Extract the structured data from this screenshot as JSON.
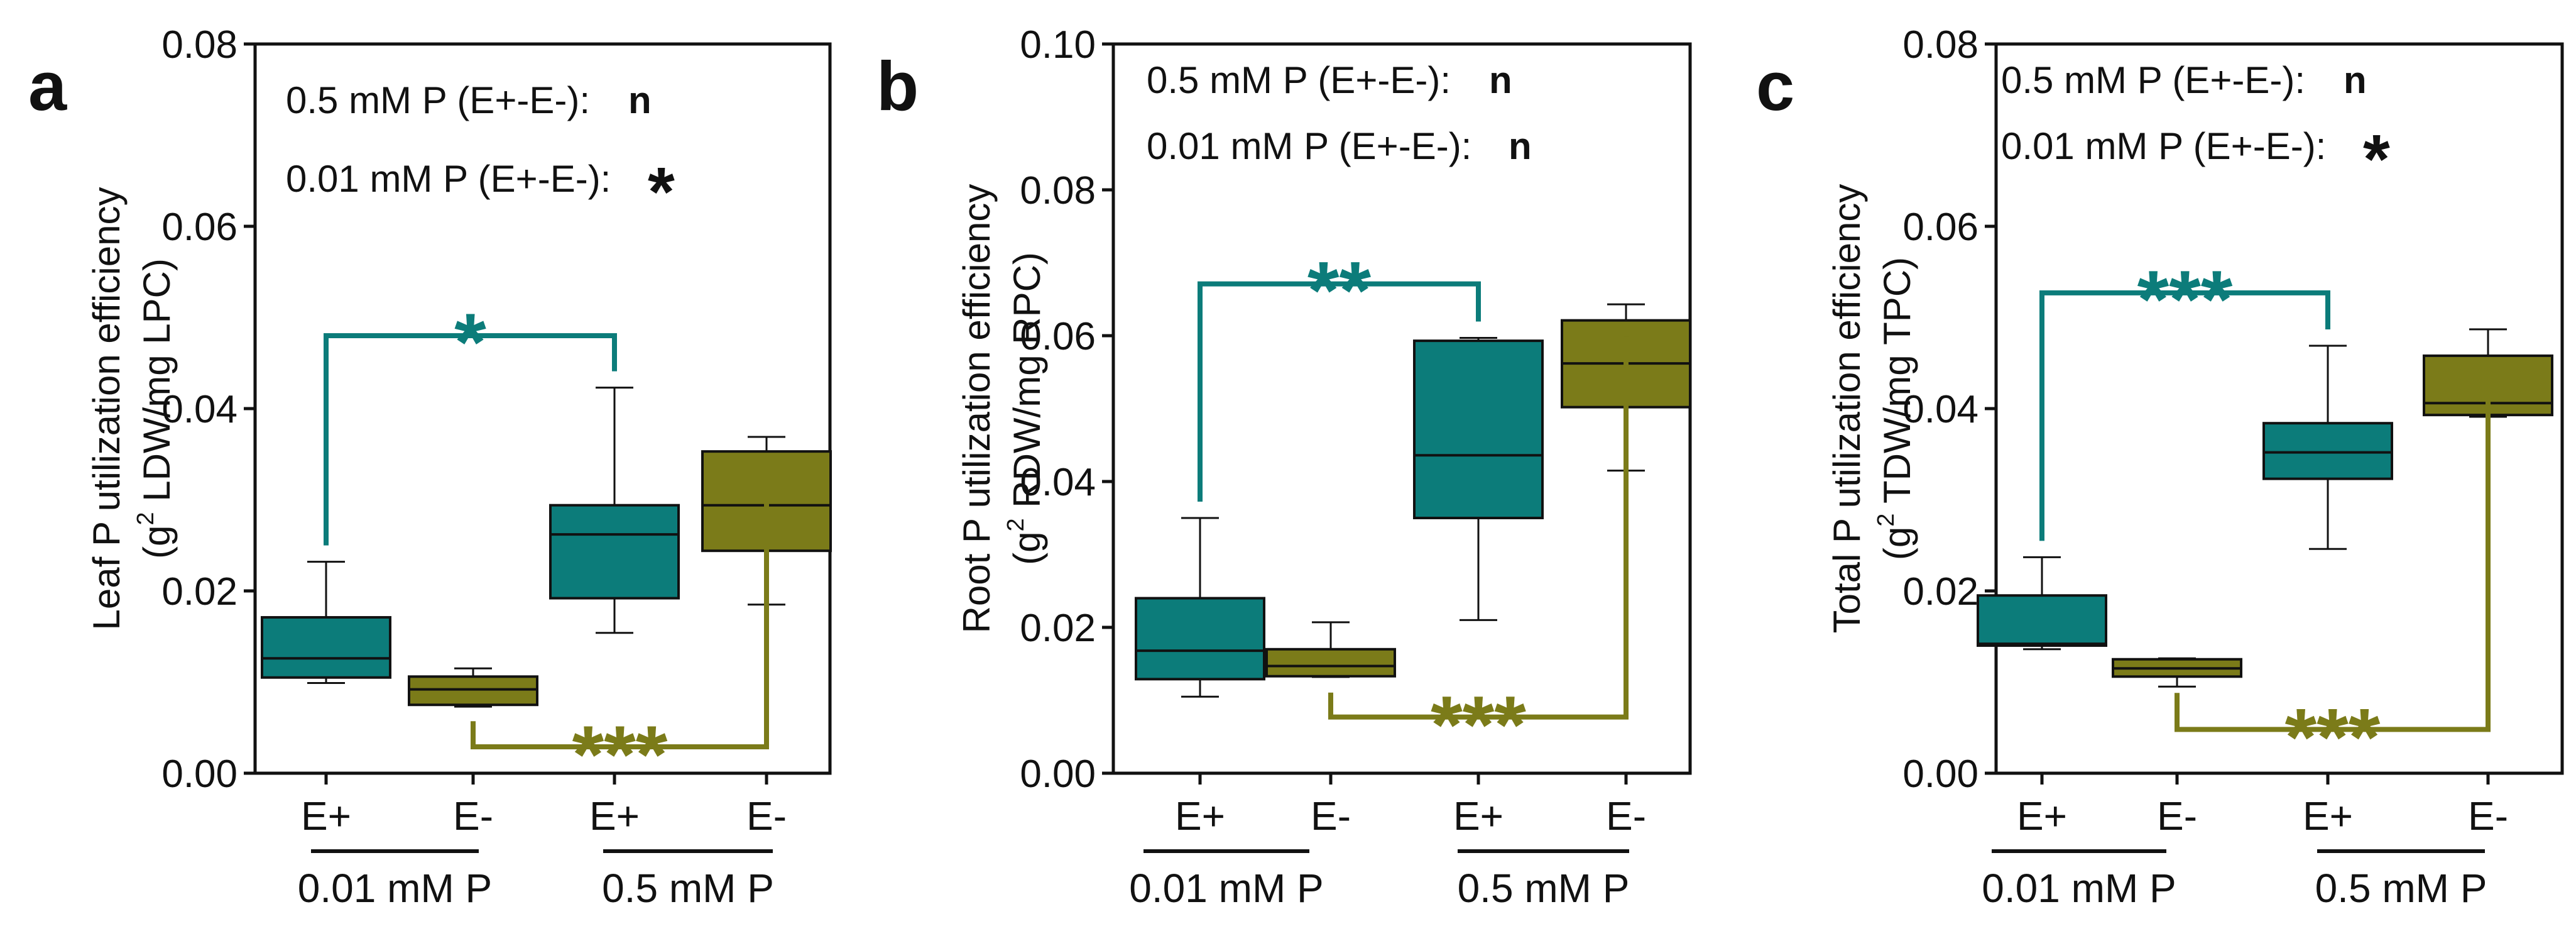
{
  "figure": {
    "colors": {
      "E+": "#0c7c7a",
      "E-": "#7b7b19",
      "axis": "#111111",
      "text": "#111111"
    },
    "panels": [
      {
        "letter": "a",
        "ytitle_line1": "Leaf P utilization efficiency",
        "ytitle_line2_pre": "(g",
        "ytitle_line2_sup": "2",
        "ytitle_line2_post": " LDW/mg LPC)",
        "annotations": [
          {
            "text": "0.5 mM P (E+-E-):",
            "sig": "n"
          },
          {
            "text": "0.01 mM P (E+-E-):",
            "sig": "*"
          }
        ],
        "comparisons": [
          {
            "series": "E+",
            "stars": "*"
          },
          {
            "series": "E-",
            "stars": "***"
          }
        ],
        "groups": [
          {
            "label": "0.01 mM P",
            "cats": [
              "E+",
              "E-"
            ]
          },
          {
            "label": "0.5 mM P",
            "cats": [
              "E+",
              "E-"
            ]
          }
        ]
      },
      {
        "letter": "b",
        "ytitle_line1": "Root P utilization efficiency",
        "ytitle_line2_pre": "(g",
        "ytitle_line2_sup": "2",
        "ytitle_line2_post": " RDW/mg RPC)",
        "annotations": [
          {
            "text": "0.5 mM P (E+-E-):",
            "sig": "n"
          },
          {
            "text": "0.01 mM P (E+-E-):",
            "sig": "n"
          }
        ],
        "comparisons": [
          {
            "series": "E+",
            "stars": "**"
          },
          {
            "series": "E-",
            "stars": "***"
          }
        ],
        "groups": [
          {
            "label": "0.01 mM P",
            "cats": [
              "E+",
              "E-"
            ]
          },
          {
            "label": "0.5 mM P",
            "cats": [
              "E+",
              "E-"
            ]
          }
        ]
      },
      {
        "letter": "c",
        "ytitle_line1": "Total P utilization efficiency",
        "ytitle_line2_pre": "(g",
        "ytitle_line2_sup": "2",
        "ytitle_line2_post": " TDW/mg TPC)",
        "annotations": [
          {
            "text": "0.5 mM P (E+-E-):",
            "sig": "n"
          },
          {
            "text": "0.01 mM P (E+-E-):",
            "sig": "*"
          }
        ],
        "comparisons": [
          {
            "series": "E+",
            "stars": "***"
          },
          {
            "series": "E-",
            "stars": "***"
          }
        ],
        "groups": [
          {
            "label": "0.01 mM P",
            "cats": [
              "E+",
              "E-"
            ]
          },
          {
            "label": "0.5 mM P",
            "cats": [
              "E+",
              "E-"
            ]
          }
        ]
      }
    ]
  },
  "chart_data": [
    {
      "type": "box",
      "title": "",
      "ylabel": "Leaf P utilization efficiency (g2 LDW/mg LPC)",
      "ylim": [
        0,
        0.08
      ],
      "yticks": [
        "0.00",
        "0.02",
        "0.04",
        "0.06",
        "0.08"
      ],
      "categories": [
        "E+",
        "E-",
        "E+",
        "E-"
      ],
      "groups": [
        "0.01 mM P",
        "0.01 mM P",
        "0.5 mM P",
        "0.5 mM P"
      ],
      "boxes": [
        {
          "series": "E+",
          "min": 0.0099,
          "q1": 0.0105,
          "median": 0.0126,
          "q3": 0.0171,
          "max": 0.0232
        },
        {
          "series": "E-",
          "min": 0.0073,
          "q1": 0.0075,
          "median": 0.0092,
          "q3": 0.0106,
          "max": 0.0115
        },
        {
          "series": "E+",
          "min": 0.0154,
          "q1": 0.0192,
          "median": 0.0262,
          "q3": 0.0294,
          "max": 0.0423
        },
        {
          "series": "E-",
          "min": 0.0185,
          "q1": 0.0244,
          "median": 0.0294,
          "q3": 0.0353,
          "max": 0.0369
        }
      ],
      "comparisons": [
        {
          "series": "E+",
          "from": 0,
          "to": 2,
          "level": 0.048,
          "stars": "*"
        },
        {
          "series": "E-",
          "from": 1,
          "to": 3,
          "level": 0.0029,
          "stars": "***"
        }
      ]
    },
    {
      "type": "box",
      "title": "",
      "ylabel": "Root P utilization efficiency (g2 RDW/mg RPC)",
      "ylim": [
        0,
        0.1
      ],
      "yticks": [
        "0.00",
        "0.02",
        "0.04",
        "0.06",
        "0.08",
        "0.10"
      ],
      "categories": [
        "E+",
        "E-",
        "E+",
        "E-"
      ],
      "groups": [
        "0.01 mM P",
        "0.01 mM P",
        "0.5 mM P",
        "0.5 mM P"
      ],
      "boxes": [
        {
          "series": "E+",
          "min": 0.0105,
          "q1": 0.0129,
          "median": 0.0168,
          "q3": 0.024,
          "max": 0.035
        },
        {
          "series": "E-",
          "min": 0.0132,
          "q1": 0.0133,
          "median": 0.0147,
          "q3": 0.017,
          "max": 0.0207
        },
        {
          "series": "E+",
          "min": 0.021,
          "q1": 0.035,
          "median": 0.0436,
          "q3": 0.0593,
          "max": 0.0597
        },
        {
          "series": "E-",
          "min": 0.0415,
          "q1": 0.0502,
          "median": 0.0562,
          "q3": 0.0621,
          "max": 0.0643
        }
      ],
      "comparisons": [
        {
          "series": "E+",
          "from": 0,
          "to": 2,
          "level": 0.0671,
          "stars": "**"
        },
        {
          "series": "E-",
          "from": 1,
          "to": 3,
          "level": 0.0077,
          "stars": "***"
        }
      ]
    },
    {
      "type": "box",
      "title": "",
      "ylabel": "Total P utilization efficiency (g2 TDW/mg TPC)",
      "ylim": [
        0,
        0.08
      ],
      "yticks": [
        "0.00",
        "0.02",
        "0.04",
        "0.06",
        "0.08"
      ],
      "categories": [
        "E+",
        "E-",
        "E+",
        "E-"
      ],
      "groups": [
        "0.01 mM P",
        "0.01 mM P",
        "0.5 mM P",
        "0.5 mM P"
      ],
      "boxes": [
        {
          "series": "E+",
          "min": 0.0136,
          "q1": 0.014,
          "median": 0.0142,
          "q3": 0.0195,
          "max": 0.0237
        },
        {
          "series": "E-",
          "min": 0.0095,
          "q1": 0.0106,
          "median": 0.0115,
          "q3": 0.0125,
          "max": 0.0126
        },
        {
          "series": "E+",
          "min": 0.0246,
          "q1": 0.0323,
          "median": 0.0352,
          "q3": 0.0384,
          "max": 0.0469
        },
        {
          "series": "E-",
          "min": 0.0391,
          "q1": 0.0393,
          "median": 0.0406,
          "q3": 0.0458,
          "max": 0.0487
        }
      ],
      "comparisons": [
        {
          "series": "E+",
          "from": 0,
          "to": 2,
          "level": 0.0527,
          "stars": "***"
        },
        {
          "series": "E-",
          "from": 1,
          "to": 3,
          "level": 0.0048,
          "stars": "***"
        }
      ]
    }
  ]
}
